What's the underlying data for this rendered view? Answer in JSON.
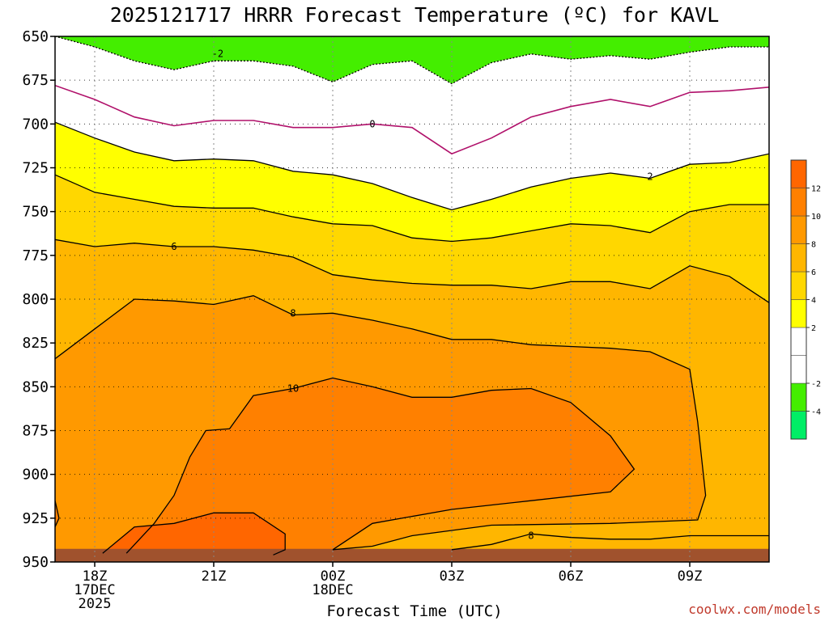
{
  "chart_data": {
    "type": "heatmap",
    "title": "2025121717 HRRR Forecast Temperature (ºC) for KAVL",
    "xlabel": "Forecast Time (UTC)",
    "ylabel": "",
    "y_axis": {
      "ticks": [
        "650",
        "675",
        "700",
        "725",
        "750",
        "775",
        "800",
        "825",
        "850",
        "875",
        "900",
        "925",
        "950"
      ],
      "range": [
        650,
        950
      ],
      "inverted": true
    },
    "x_axis": {
      "ticks": [
        {
          "hour": 1,
          "label": "18Z",
          "sub1": "17DEC",
          "sub2": "2025"
        },
        {
          "hour": 4,
          "label": "21Z",
          "sub1": "",
          "sub2": ""
        },
        {
          "hour": 7,
          "label": "00Z",
          "sub1": "18DEC",
          "sub2": ""
        },
        {
          "hour": 10,
          "label": "03Z",
          "sub1": "",
          "sub2": ""
        },
        {
          "hour": 13,
          "label": "06Z",
          "sub1": "",
          "sub2": ""
        },
        {
          "hour": 16,
          "label": "09Z",
          "sub1": "",
          "sub2": ""
        }
      ],
      "range": [
        0,
        18
      ]
    },
    "grid": true,
    "colorbar": {
      "labels": [
        "12",
        "10",
        "8",
        "6",
        "4",
        "2",
        "-2",
        "-4"
      ],
      "bands": [
        {
          "lo": -6,
          "hi": -4,
          "color": "#00ee66"
        },
        {
          "lo": -4,
          "hi": -2,
          "color": "#44ee00"
        },
        {
          "lo": -2,
          "hi": 0,
          "color": "#ffffff"
        },
        {
          "lo": 0,
          "hi": 2,
          "color": "#ffffff"
        },
        {
          "lo": 2,
          "hi": 4,
          "color": "#ffff00"
        },
        {
          "lo": 4,
          "hi": 6,
          "color": "#ffd700"
        },
        {
          "lo": 6,
          "hi": 8,
          "color": "#ffb600"
        },
        {
          "lo": 8,
          "hi": 10,
          "color": "#ff9900"
        },
        {
          "lo": 10,
          "hi": 12,
          "color": "#ff8000"
        },
        {
          "lo": 12,
          "hi": 14,
          "color": "#ff6600"
        }
      ]
    },
    "contours": [
      {
        "level": -2,
        "label": "-2",
        "label_at": [
          4.1,
          660
        ],
        "style": "dashed",
        "points": [
          [
            0,
            650
          ],
          [
            1,
            656
          ],
          [
            2,
            664
          ],
          [
            3,
            669
          ],
          [
            4,
            664
          ],
          [
            5,
            664
          ],
          [
            6,
            667
          ],
          [
            7,
            676
          ],
          [
            8,
            666
          ],
          [
            9,
            664
          ],
          [
            10,
            677
          ],
          [
            11,
            665
          ],
          [
            12,
            660
          ],
          [
            13,
            663
          ],
          [
            14,
            661
          ],
          [
            15,
            663
          ],
          [
            16,
            659
          ],
          [
            17,
            656
          ],
          [
            18,
            656
          ]
        ]
      },
      {
        "level": 0,
        "label": "0",
        "label_at": [
          8.0,
          700
        ],
        "style": "magenta",
        "points": [
          [
            0,
            678
          ],
          [
            1,
            686
          ],
          [
            2,
            696
          ],
          [
            3,
            701
          ],
          [
            4,
            698
          ],
          [
            5,
            698
          ],
          [
            6,
            702
          ],
          [
            7,
            702
          ],
          [
            8,
            700
          ],
          [
            9,
            702
          ],
          [
            10,
            717
          ],
          [
            11,
            708
          ],
          [
            12,
            696
          ],
          [
            13,
            690
          ],
          [
            14,
            686
          ],
          [
            15,
            690
          ],
          [
            16,
            682
          ],
          [
            17,
            681
          ],
          [
            18,
            679
          ]
        ]
      },
      {
        "level": 2,
        "label": "2",
        "label_at": [
          15.0,
          730
        ],
        "style": "solid",
        "points": [
          [
            0,
            699
          ],
          [
            1,
            708
          ],
          [
            2,
            716
          ],
          [
            3,
            721
          ],
          [
            4,
            720
          ],
          [
            5,
            721
          ],
          [
            6,
            727
          ],
          [
            7,
            729
          ],
          [
            8,
            734
          ],
          [
            9,
            742
          ],
          [
            10,
            749
          ],
          [
            11,
            743
          ],
          [
            12,
            736
          ],
          [
            13,
            731
          ],
          [
            14,
            728
          ],
          [
            15,
            731
          ],
          [
            16,
            723
          ],
          [
            17,
            722
          ],
          [
            18,
            717
          ]
        ]
      },
      {
        "level": 4,
        "label": "",
        "label_at": null,
        "style": "solid",
        "points": [
          [
            0,
            729
          ],
          [
            1,
            739
          ],
          [
            2,
            743
          ],
          [
            3,
            747
          ],
          [
            4,
            748
          ],
          [
            5,
            748
          ],
          [
            6,
            753
          ],
          [
            7,
            757
          ],
          [
            8,
            758
          ],
          [
            9,
            765
          ],
          [
            10,
            767
          ],
          [
            11,
            765
          ],
          [
            12,
            761
          ],
          [
            13,
            757
          ],
          [
            14,
            758
          ],
          [
            15,
            762
          ],
          [
            16,
            750
          ],
          [
            17,
            746
          ],
          [
            18,
            746
          ]
        ]
      },
      {
        "level": 6,
        "label": "6",
        "label_at": [
          3.0,
          770
        ],
        "style": "solid",
        "points": [
          [
            0,
            766
          ],
          [
            1,
            770
          ],
          [
            2,
            768
          ],
          [
            3,
            770
          ],
          [
            4,
            770
          ],
          [
            5,
            772
          ],
          [
            6,
            776
          ],
          [
            7,
            786
          ],
          [
            8,
            789
          ],
          [
            9,
            791
          ],
          [
            10,
            792
          ],
          [
            11,
            792
          ],
          [
            12,
            794
          ],
          [
            13,
            790
          ],
          [
            14,
            790
          ],
          [
            15,
            794
          ],
          [
            16,
            781
          ],
          [
            17,
            787
          ],
          [
            18,
            802
          ]
        ]
      },
      {
        "level": 8,
        "label": "8",
        "label_at": [
          6.0,
          808
        ],
        "style": "solid",
        "points": [
          [
            0,
            834
          ],
          [
            1,
            817
          ],
          [
            2,
            800
          ],
          [
            3,
            801
          ],
          [
            4,
            803
          ],
          [
            5,
            798
          ],
          [
            6,
            809
          ],
          [
            7,
            808
          ],
          [
            8,
            812
          ],
          [
            9,
            817
          ],
          [
            10,
            823
          ],
          [
            11,
            823
          ],
          [
            12,
            826
          ],
          [
            13,
            827
          ],
          [
            14,
            828
          ],
          [
            15,
            830
          ],
          [
            16,
            840
          ],
          [
            16.2,
            870
          ],
          [
            16.4,
            912
          ],
          [
            16.2,
            926
          ],
          [
            14,
            928
          ],
          [
            11,
            929
          ],
          [
            9,
            935
          ],
          [
            8,
            941
          ],
          [
            7,
            943
          ]
        ]
      },
      {
        "level": 8,
        "label": "8",
        "label_at": [
          12.0,
          935
        ],
        "style": "solid",
        "points": [
          [
            10,
            943
          ],
          [
            11,
            940
          ],
          [
            12,
            934
          ],
          [
            13,
            936
          ],
          [
            14,
            937
          ],
          [
            15,
            937
          ],
          [
            16,
            935
          ],
          [
            17,
            935
          ],
          [
            18,
            935
          ]
        ]
      },
      {
        "level": 10,
        "label": "10",
        "label_at": [
          6.0,
          851
        ],
        "style": "solid",
        "points": [
          [
            1.8,
            945
          ],
          [
            2.5,
            928
          ],
          [
            3,
            912
          ],
          [
            3.4,
            890
          ],
          [
            3.8,
            875
          ],
          [
            4.4,
            874
          ],
          [
            5.0,
            855
          ],
          [
            6,
            851
          ],
          [
            7,
            845
          ],
          [
            8,
            850
          ],
          [
            9,
            856
          ],
          [
            10,
            856
          ],
          [
            11,
            852
          ],
          [
            12,
            851
          ],
          [
            13,
            859
          ],
          [
            14,
            878
          ],
          [
            14.6,
            897
          ],
          [
            14,
            910
          ],
          [
            12,
            915
          ],
          [
            10,
            920
          ],
          [
            8,
            928
          ],
          [
            7,
            943
          ]
        ]
      },
      {
        "level": 12,
        "label": "",
        "label_at": null,
        "style": "solid",
        "points": [
          [
            1.2,
            945
          ],
          [
            2,
            930
          ],
          [
            3,
            928
          ],
          [
            4,
            922
          ],
          [
            5,
            922
          ],
          [
            5.8,
            934
          ],
          [
            5.8,
            943
          ],
          [
            5.5,
            946
          ]
        ]
      },
      {
        "level": 10,
        "label": "",
        "label_at": null,
        "style": "solid",
        "points": [
          [
            0,
            915
          ],
          [
            0.1,
            925
          ],
          [
            0,
            930
          ]
        ]
      }
    ],
    "credit": "coolwx.com/models"
  }
}
